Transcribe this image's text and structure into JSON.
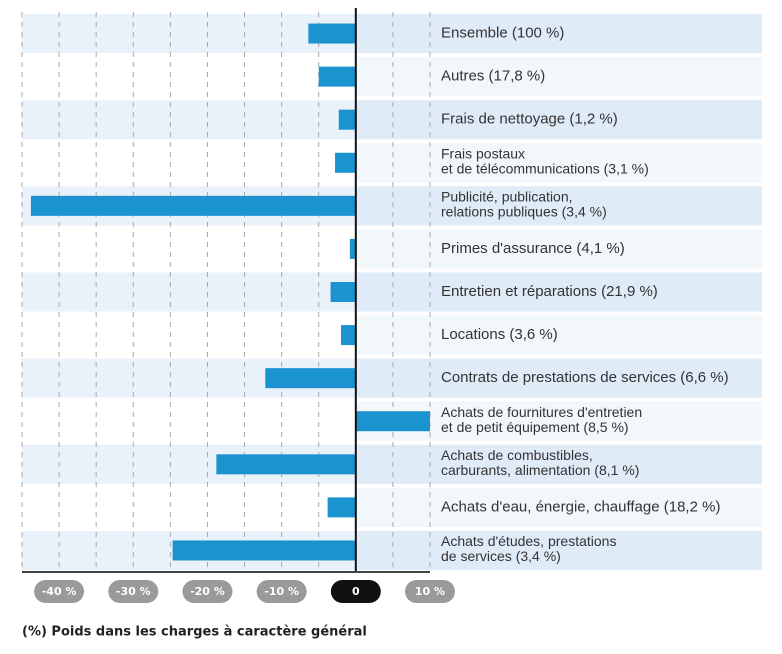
{
  "chart_data": {
    "type": "barh",
    "categories": [
      [
        "Ensemble (100 %)"
      ],
      [
        "Autres (17,8 %)"
      ],
      [
        "Frais de nettoyage (1,2 %)"
      ],
      [
        "Frais postaux",
        "et de télécommunications (3,1 %)"
      ],
      [
        "Publicité, publication,",
        "relations publiques (3,4 %)"
      ],
      [
        "Primes d'assurance (4,1 %)"
      ],
      [
        "Entretien et réparations (21,9 %)"
      ],
      [
        "Locations (3,6 %)"
      ],
      [
        "Contrats de prestations de services (6,6 %)"
      ],
      [
        "Achats de fournitures d'entretien",
        "et de petit équipement (8,5 %)"
      ],
      [
        "Achats de combustibles,",
        "carburants, alimentation (8,1 %)"
      ],
      [
        "Achats d'eau, énergie, chauffage (18,2 %)"
      ],
      [
        "Achats d'études, prestations",
        "de services (3,4 %)"
      ]
    ],
    "values": [
      -6.4,
      -5.0,
      -2.3,
      -2.8,
      -43.8,
      -0.8,
      -3.4,
      -2.0,
      -12.2,
      10.0,
      -18.8,
      -3.8,
      -24.7
    ],
    "color": "#1a93cf",
    "xlim": [
      -45,
      10
    ],
    "xticks": [
      {
        "value": -40,
        "label": "-40 %"
      },
      {
        "value": -30,
        "label": "-30 %"
      },
      {
        "value": -20,
        "label": "-20 %"
      },
      {
        "value": -10,
        "label": "-10 %"
      },
      0,
      {
        "value": 10,
        "label": "10 %"
      }
    ],
    "grid_lines": [
      -45,
      -40,
      -35,
      -30,
      -25,
      -20,
      -15,
      -10,
      -5,
      5,
      10
    ],
    "xlabel": "(%) Poids dans les charges à caractère général"
  }
}
